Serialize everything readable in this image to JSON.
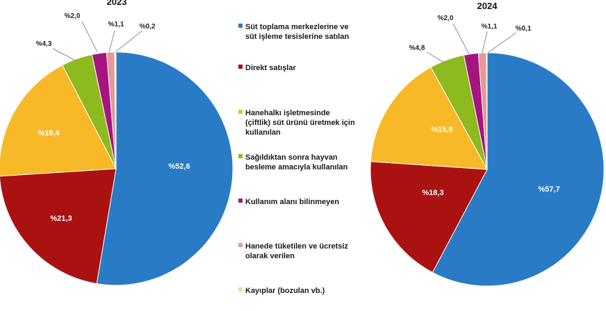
{
  "chart_data": [
    {
      "type": "pie",
      "title": "2023",
      "categories": [
        "Süt toplama merkezlerine ve süt işleme tesislerine satılan",
        "Direkt satışlar",
        "Hanehalkı işletmesinde (çiftlik) süt ürünü üretmek için kullanılan",
        "Sağıldıktan sonra hayvan besleme amacıyla kullanılan",
        "Kullanım alanı bilinmeyen",
        "Hanede tüketilen ve ücretsiz olarak verilen",
        "Kayıplar (bozulan vb.)"
      ],
      "values": [
        52.6,
        21.3,
        18.4,
        4.3,
        2.0,
        1.1,
        0.2
      ],
      "labels": [
        "%52,6",
        "%21,3",
        "%18,4",
        "%4,3",
        "%2,0",
        "%1,1",
        "%0,2"
      ]
    },
    {
      "type": "pie",
      "title": "2024",
      "categories": [
        "Süt toplama merkezlerine ve süt işleme tesislerine satılan",
        "Direkt satışlar",
        "Hanehalkı işletmesinde (çiftlik) süt ürünü üretmek için kullanılan",
        "Sağıldıktan sonra hayvan besleme amacıyla kullanılan",
        "Kullanım alanı bilinmeyen",
        "Hanede tüketilen ve ücretsiz olarak verilen",
        "Kayıplar (bozulan vb.)"
      ],
      "values": [
        57.7,
        18.3,
        15.9,
        4.8,
        2.0,
        1.1,
        0.1
      ],
      "labels": [
        "%57,7",
        "%18,3",
        "%15,9",
        "%4,8",
        "%2,0",
        "%1,1",
        "%0,1"
      ]
    }
  ],
  "legend": [
    {
      "lines": [
        "Süt toplama merkezlerine ve",
        "süt işleme tesislerine satılan"
      ],
      "color": "#2a7bc6"
    },
    {
      "lines": [
        "Direkt satışlar"
      ],
      "color": "#aa1111"
    },
    {
      "lines": [
        "Hanehalkı işletmesinde",
        "(çiftlik) süt ürünü üretmek için",
        "kullanılan"
      ],
      "color": "#f7b928"
    },
    {
      "lines": [
        "Sağıldıktan sonra hayvan",
        "besleme amacıyla kullanılan"
      ],
      "color": "#8dba1e"
    },
    {
      "lines": [
        "Kullanım alanı bilinmeyen"
      ],
      "color": "#a5157f"
    },
    {
      "lines": [
        "Hanede tüketilen ve ücretsiz",
        "olarak verilen"
      ],
      "color": "#e59a94"
    },
    {
      "lines": [
        "Kayıplar (bozulan vb.)"
      ],
      "color": "#f8d79c"
    }
  ]
}
